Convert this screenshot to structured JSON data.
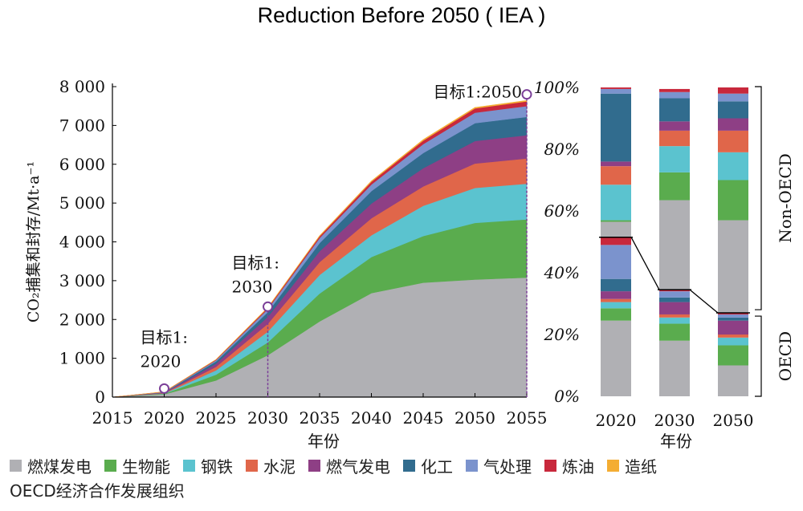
{
  "title": "Reduction Before 2050 ( IEA )",
  "oecd_note": "OECD经济合作发展组织",
  "chart_data": [
    {
      "type": "area",
      "ylabel": "CO₂捕集和封存/Mt·a⁻¹",
      "xlabel": "年份",
      "x": [
        2015,
        2020,
        2025,
        2030,
        2035,
        2040,
        2045,
        2050,
        2055
      ],
      "xlim": [
        2015,
        2055
      ],
      "ylim": [
        0,
        8000
      ],
      "yticks": [
        0,
        1000,
        2000,
        3000,
        4000,
        5000,
        6000,
        7000,
        8000
      ],
      "ytick_labels": [
        "0",
        "1 000",
        "2 000",
        "3 000",
        "4 000",
        "5 000",
        "6 000",
        "7 000",
        "8 000"
      ],
      "series": [
        {
          "name": "燃煤发电",
          "color": "#b0b0b4",
          "values": [
            0,
            70,
            430,
            1080,
            1950,
            2680,
            2950,
            3030,
            3080
          ]
        },
        {
          "name": "生物能",
          "color": "#5aac4e",
          "values": [
            0,
            15,
            150,
            330,
            720,
            930,
            1200,
            1460,
            1500
          ]
        },
        {
          "name": "钢铁",
          "color": "#5bc3cf",
          "values": [
            0,
            10,
            110,
            280,
            480,
            560,
            780,
            900,
            920
          ]
        },
        {
          "name": "水泥",
          "color": "#e0664a",
          "values": [
            0,
            10,
            90,
            200,
            330,
            440,
            500,
            630,
            650
          ]
        },
        {
          "name": "燃气发电",
          "color": "#8e3f85",
          "values": [
            0,
            10,
            80,
            180,
            280,
            380,
            470,
            580,
            600
          ]
        },
        {
          "name": "化工",
          "color": "#316c8e",
          "values": [
            0,
            8,
            60,
            120,
            210,
            320,
            390,
            460,
            470
          ]
        },
        {
          "name": "气处理",
          "color": "#7b93cd",
          "values": [
            0,
            8,
            30,
            80,
            130,
            170,
            230,
            270,
            280
          ]
        },
        {
          "name": "炼油",
          "color": "#c8283c",
          "values": [
            0,
            5,
            15,
            30,
            45,
            70,
            90,
            110,
            120
          ]
        },
        {
          "name": "造纸",
          "color": "#f4ad33",
          "values": [
            0,
            2,
            5,
            10,
            15,
            20,
            25,
            25,
            25
          ]
        }
      ],
      "annotations": [
        {
          "label_line1": "目标1:",
          "label_line2": "2020",
          "x": 2020,
          "y": 220
        },
        {
          "label_line1": "目标1:",
          "label_line2": "2030",
          "x": 2030,
          "y": 2330
        },
        {
          "label": "目标1:2050",
          "x": 2055,
          "y": 7800
        }
      ]
    },
    {
      "type": "bar",
      "stacked": "percent",
      "xlabel": "年份",
      "categories": [
        "2020",
        "2030",
        "2050"
      ],
      "yticks": [
        0,
        20,
        40,
        60,
        80,
        100
      ],
      "ytick_labels": [
        "0%",
        "20%",
        "40%",
        "60%",
        "80%",
        "100%"
      ],
      "groups": [
        {
          "name": "OECD",
          "range": [
            0,
            27
          ]
        },
        {
          "name": "Non-OECD",
          "range": [
            27,
            100
          ]
        }
      ],
      "oecd_boundary": [
        51.5,
        34.5,
        27
      ],
      "segments": [
        {
          "sector": "燃煤发电",
          "color": "#b0b0b4",
          "group": "OECD",
          "values": [
            24.5,
            18,
            10
          ]
        },
        {
          "sector": "生物能",
          "color": "#5aac4e",
          "group": "OECD",
          "values": [
            4,
            5.5,
            6.5
          ]
        },
        {
          "sector": "钢铁",
          "color": "#5bc3cf",
          "group": "OECD",
          "values": [
            2,
            2,
            2.5
          ]
        },
        {
          "sector": "水泥",
          "color": "#e0664a",
          "group": "OECD",
          "values": [
            1,
            1,
            1
          ]
        },
        {
          "sector": "燃气发电",
          "color": "#8e3f85",
          "group": "OECD",
          "values": [
            2.5,
            4,
            4.5
          ]
        },
        {
          "sector": "化工",
          "color": "#316c8e",
          "group": "OECD",
          "values": [
            4,
            1.5,
            1
          ]
        },
        {
          "sector": "气处理",
          "color": "#7b93cd",
          "group": "OECD",
          "values": [
            11,
            2,
            1
          ]
        },
        {
          "sector": "炼油",
          "color": "#c8283c",
          "group": "OECD",
          "values": [
            2.5,
            0.5,
            0.5
          ]
        },
        {
          "sector": "燃煤发电",
          "color": "#b0b0b4",
          "group": "Non-OECD",
          "values": [
            5,
            29,
            30
          ]
        },
        {
          "sector": "生物能",
          "color": "#5aac4e",
          "group": "Non-OECD",
          "values": [
            0.5,
            9,
            13
          ]
        },
        {
          "sector": "钢铁",
          "color": "#5bc3cf",
          "group": "Non-OECD",
          "values": [
            11.5,
            8.5,
            9
          ]
        },
        {
          "sector": "水泥",
          "color": "#e0664a",
          "group": "Non-OECD",
          "values": [
            6,
            5,
            7
          ]
        },
        {
          "sector": "燃气发电",
          "color": "#8e3f85",
          "group": "Non-OECD",
          "values": [
            1.5,
            3,
            4
          ]
        },
        {
          "sector": "化工",
          "color": "#316c8e",
          "group": "Non-OECD",
          "values": [
            22,
            7.5,
            5.5
          ]
        },
        {
          "sector": "气处理",
          "color": "#7b93cd",
          "group": "Non-OECD",
          "values": [
            1.5,
            2,
            2.5
          ]
        },
        {
          "sector": "炼油",
          "color": "#c8283c",
          "group": "Non-OECD",
          "values": [
            0.5,
            1,
            2
          ]
        }
      ]
    }
  ],
  "legend": [
    {
      "label": "燃煤发电",
      "color": "#b0b0b4",
      "icon": "square"
    },
    {
      "label": "生物能",
      "color": "#5aac4e",
      "icon": "square"
    },
    {
      "label": "钢铁",
      "color": "#5bc3cf",
      "icon": "square"
    },
    {
      "label": "水泥",
      "color": "#e0664a",
      "icon": "square"
    },
    {
      "label": "燃气发电",
      "color": "#8e3f85",
      "icon": "square"
    },
    {
      "label": "化工",
      "color": "#316c8e",
      "icon": "square"
    },
    {
      "label": "气处理",
      "color": "#7b93cd",
      "icon": "square"
    },
    {
      "label": "炼油",
      "color": "#c8283c",
      "icon": "square"
    },
    {
      "label": "造纸",
      "color": "#f4ad33",
      "icon": "square"
    }
  ]
}
